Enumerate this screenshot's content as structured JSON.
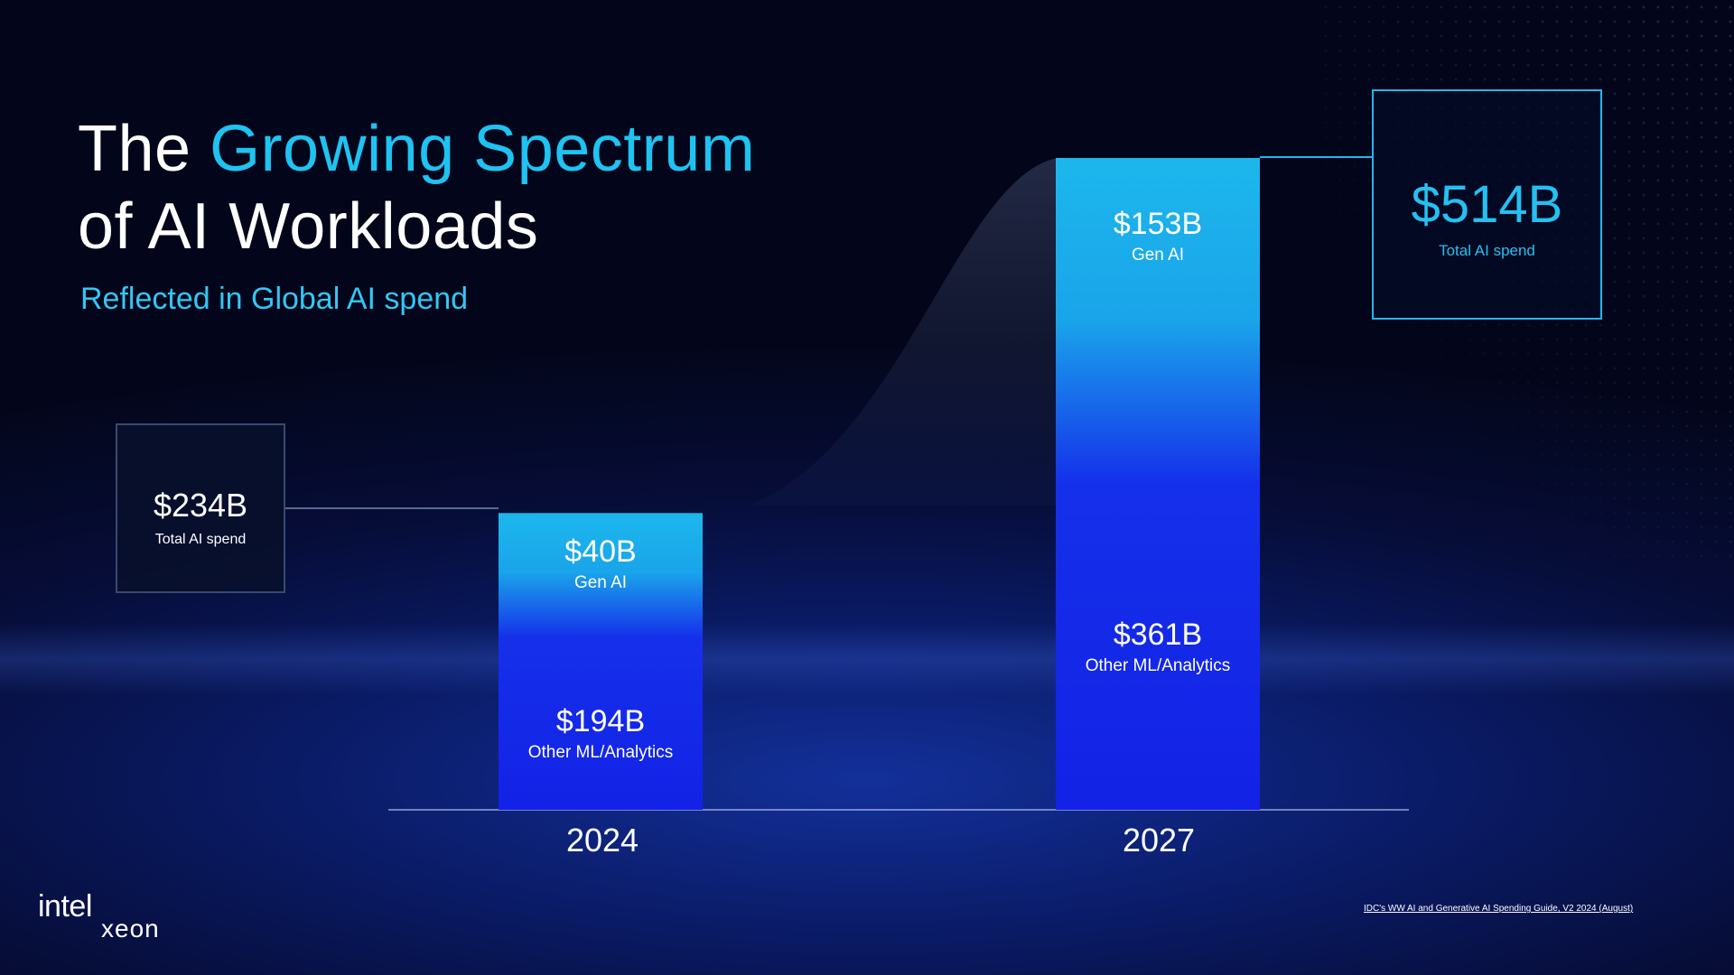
{
  "title": {
    "line1_plain": "The ",
    "line1_accent": "Growing Spectrum",
    "line2": "of AI Workloads"
  },
  "subtitle": "Reflected in Global AI spend",
  "chart_data": {
    "type": "bar",
    "stacked": true,
    "categories": [
      "2024",
      "2027"
    ],
    "series": [
      {
        "name": "Other ML/Analytics",
        "values": [
          194,
          361
        ],
        "labels": [
          "$194B",
          "$361B"
        ]
      },
      {
        "name": "Gen AI",
        "values": [
          40,
          153
        ],
        "labels": [
          "$40B",
          "$153B"
        ]
      }
    ],
    "totals": [
      {
        "value": 234,
        "label": "$234B",
        "caption": "Total AI spend"
      },
      {
        "value": 514,
        "label": "$514B",
        "caption": "Total AI spend"
      }
    ],
    "unit": "B",
    "ylim": [
      0,
      514
    ],
    "grid": false,
    "legend": "none",
    "colors": {
      "gen_ai": "#1db7ec",
      "other": "#1322e6",
      "total_highlight": "#22b7ea"
    }
  },
  "logo": {
    "brand": "intel",
    "product": "xeon"
  },
  "source": "IDC's WW AI and Generative AI Spending Guide, V2 2024 (August)"
}
